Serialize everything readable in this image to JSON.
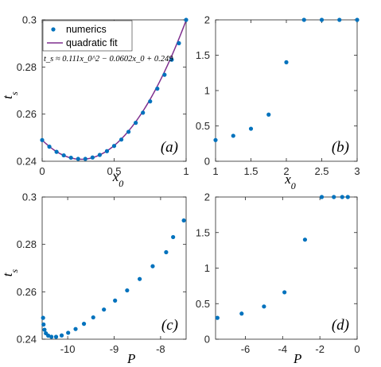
{
  "chart_data": [
    {
      "id": "a",
      "type": "scatter",
      "panel_label": "(a)",
      "xlabel": "x",
      "xlabel_sub": "0",
      "ylabel": "t",
      "ylabel_sub": "s",
      "xlim": [
        0,
        1
      ],
      "ylim": [
        0.24,
        0.3
      ],
      "xticks": [
        0,
        0.5,
        1
      ],
      "xtick_labels": [
        "0",
        "0.5",
        "1"
      ],
      "yticks": [
        0.24,
        0.26,
        0.28,
        0.3
      ],
      "ytick_labels": [
        "0.24",
        "0.26",
        "0.28",
        "0.3"
      ],
      "legend": {
        "placement": "top-left",
        "entries": [
          "numerics",
          "quadratic fit"
        ]
      },
      "annotation": "t_s ≈ 0.111x_0^2 − 0.0602x_0 + 0.249",
      "series": [
        {
          "name": "numerics",
          "style": "markers",
          "x": [
            0,
            0.05,
            0.1,
            0.15,
            0.2,
            0.25,
            0.3,
            0.35,
            0.4,
            0.45,
            0.5,
            0.55,
            0.6,
            0.65,
            0.7,
            0.75,
            0.8,
            0.85,
            0.9,
            0.95,
            1.0
          ],
          "y": [
            0.249,
            0.2462,
            0.244,
            0.2425,
            0.2415,
            0.241,
            0.241,
            0.2416,
            0.2427,
            0.2443,
            0.2465,
            0.2492,
            0.2525,
            0.2563,
            0.2606,
            0.2654,
            0.2708,
            0.2767,
            0.2831,
            0.2901,
            0.3005
          ]
        },
        {
          "name": "quadratic fit",
          "style": "line",
          "coefficients": [
            0.111,
            -0.0602,
            0.249
          ]
        }
      ]
    },
    {
      "id": "b",
      "type": "scatter",
      "panel_label": "(b)",
      "xlabel": "x",
      "xlabel_sub": "0",
      "ylabel": "",
      "xlim": [
        1,
        3
      ],
      "ylim": [
        0,
        2
      ],
      "xticks": [
        1,
        1.5,
        2,
        2.5,
        3
      ],
      "xtick_labels": [
        "1",
        "1.5",
        "2",
        "2.5",
        "3"
      ],
      "yticks": [
        0,
        0.5,
        1,
        1.5,
        2
      ],
      "ytick_labels": [
        "0",
        "0.5",
        "1",
        "1.5",
        "2"
      ],
      "series": [
        {
          "style": "markers",
          "x": [
            1.0,
            1.25,
            1.5,
            1.75,
            2.0,
            2.25,
            2.5,
            2.75,
            3.0
          ],
          "y": [
            0.3,
            0.36,
            0.46,
            0.66,
            1.4,
            2.0,
            2.0,
            2.0,
            2.0
          ]
        }
      ]
    },
    {
      "id": "c",
      "type": "scatter",
      "panel_label": "(c)",
      "xlabel": "P",
      "ylabel": "t",
      "ylabel_sub": "s",
      "xlim": [
        -10.55,
        -7.45
      ],
      "ylim": [
        0.24,
        0.3
      ],
      "xticks": [
        -10,
        -9,
        -8
      ],
      "xtick_labels": [
        "-10",
        "-9",
        "-8"
      ],
      "yticks": [
        0.24,
        0.26,
        0.28,
        0.3
      ],
      "ytick_labels": [
        "0.24",
        "0.26",
        "0.28",
        "0.3"
      ],
      "series": [
        {
          "style": "markers",
          "x": [
            -10.53,
            -10.52,
            -10.5,
            -10.47,
            -10.42,
            -10.35,
            -10.25,
            -10.13,
            -9.99,
            -9.83,
            -9.65,
            -9.45,
            -9.22,
            -8.98,
            -8.72,
            -8.45,
            -8.17,
            -7.88,
            -7.73,
            -7.5
          ],
          "y": [
            0.249,
            0.2462,
            0.244,
            0.2425,
            0.2415,
            0.241,
            0.241,
            0.2416,
            0.2427,
            0.2443,
            0.2465,
            0.2492,
            0.2525,
            0.2563,
            0.2606,
            0.2654,
            0.2708,
            0.2767,
            0.2831,
            0.2901
          ]
        }
      ]
    },
    {
      "id": "d",
      "type": "scatter",
      "panel_label": "(d)",
      "xlabel": "P",
      "ylabel": "",
      "xlim": [
        -7.6,
        0
      ],
      "ylim": [
        0,
        2
      ],
      "xticks": [
        -6,
        -4,
        -2,
        0
      ],
      "xtick_labels": [
        "-6",
        "-4",
        "-2",
        "0"
      ],
      "yticks": [
        0,
        0.5,
        1,
        1.5,
        2
      ],
      "ytick_labels": [
        "0",
        "0.5",
        "1",
        "1.5",
        "2"
      ],
      "series": [
        {
          "style": "markers",
          "x": [
            -7.5,
            -6.2,
            -5.0,
            -3.9,
            -2.8,
            -1.9,
            -1.25,
            -0.8,
            -0.5
          ],
          "y": [
            0.3,
            0.36,
            0.46,
            0.66,
            1.4,
            2.0,
            2.0,
            2.0,
            2.0
          ]
        }
      ]
    }
  ],
  "colors": {
    "marker": "#0072BD",
    "fit_line": "#7E2F8E",
    "axes": "#262626"
  }
}
